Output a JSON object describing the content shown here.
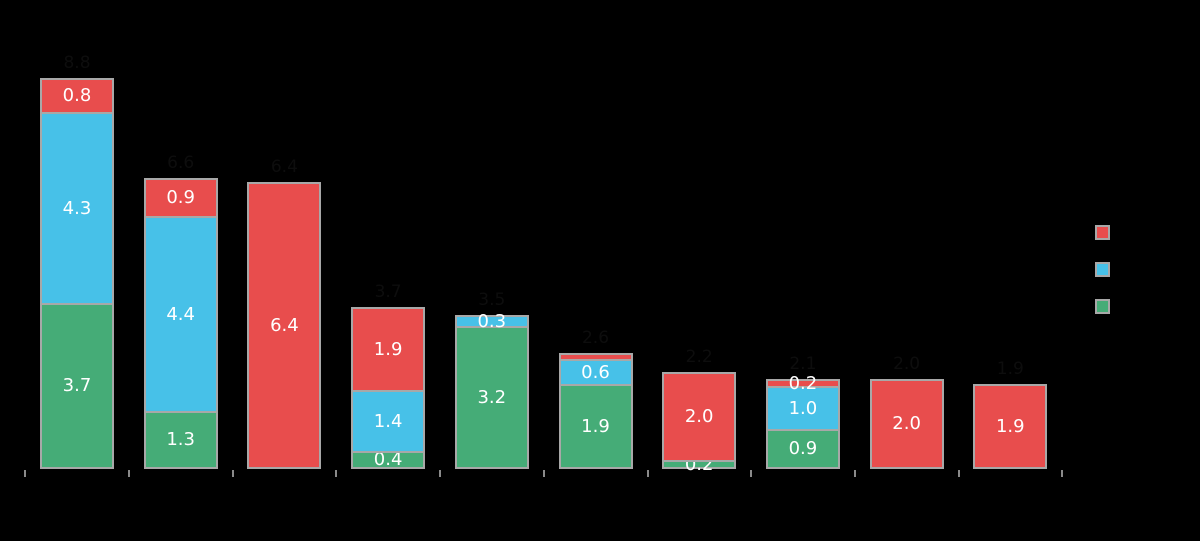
{
  "background": "#000000",
  "colors": {
    "red": "#e84d4d",
    "blue": "#47c1e8",
    "green": "#45ac77",
    "segment_border": "#a8a8a8",
    "value_label": "#ffffff",
    "tick": "#8a8a8a"
  },
  "legend": {
    "position": "right",
    "items": [
      {
        "name": "red-series",
        "color": "#e84d4d",
        "label": ""
      },
      {
        "name": "blue-series",
        "color": "#47c1e8",
        "label": ""
      },
      {
        "name": "green-series",
        "color": "#45ac77",
        "label": ""
      }
    ]
  },
  "chart_data": {
    "type": "bar",
    "stacked": true,
    "grid": false,
    "legend_position": "right",
    "categories": [
      "",
      "",
      "",
      "",
      "",
      "",
      "",
      "",
      "",
      ""
    ],
    "series": [
      {
        "name": "green",
        "color": "#45ac77",
        "values": [
          3.7,
          1.3,
          0,
          0.4,
          3.2,
          1.9,
          0.2,
          0.9,
          0,
          0
        ]
      },
      {
        "name": "blue",
        "color": "#47c1e8",
        "values": [
          4.3,
          4.4,
          0,
          1.4,
          0.3,
          0.6,
          0,
          1.0,
          0,
          0
        ]
      },
      {
        "name": "red",
        "color": "#e84d4d",
        "values": [
          0.8,
          0.9,
          6.4,
          1.9,
          0,
          0.1,
          2.0,
          0.2,
          2.0,
          1.9
        ]
      }
    ],
    "totals": [
      "8.8",
      "6.6",
      "6.4",
      "3.7",
      "3.5",
      "2.6",
      "2.2",
      "2.1",
      "2.0",
      "1.9"
    ],
    "value_label_min": 0.15
  }
}
